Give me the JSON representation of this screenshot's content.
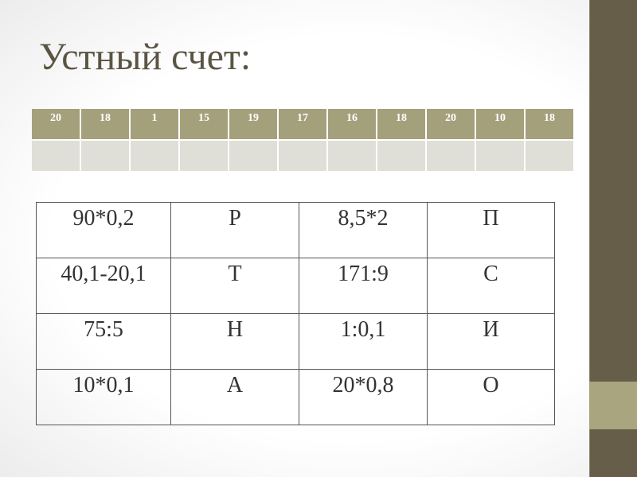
{
  "slide": {
    "title": "Устный счет:",
    "colors": {
      "band": "#665e48",
      "band_stripe": "#a9a57e",
      "header_fill": "#a5a07c",
      "answer_fill": "#dfdfd7"
    }
  },
  "answers_table": {
    "header": [
      "20",
      "18",
      "1",
      "15",
      "19",
      "17",
      "16",
      "18",
      "20",
      "10",
      "18"
    ],
    "answers": [
      "",
      "",
      "",
      "",
      "",
      "",
      "",
      "",
      "",
      "",
      ""
    ]
  },
  "tasks_table": {
    "rows": [
      [
        "90*0,2",
        "Р",
        "8,5*2",
        "П"
      ],
      [
        "40,1-20,1",
        "Т",
        "171:9",
        "С"
      ],
      [
        "75:5",
        "Н",
        "1:0,1",
        "И"
      ],
      [
        "10*0,1",
        "А",
        "20*0,8",
        "О"
      ]
    ]
  }
}
